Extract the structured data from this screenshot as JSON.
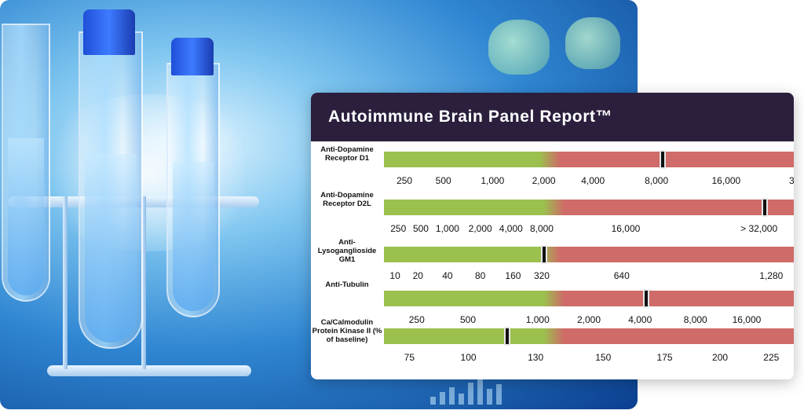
{
  "report": {
    "title": "Autoimmune Brain Panel Report™",
    "colors": {
      "header": "#2b1f3d",
      "normal": "#9bc04e",
      "elevated": "#cf6b68"
    },
    "rows": [
      {
        "label": "Anti-Dopamine Receptor D1",
        "ticks": [
          "250",
          "500",
          "1,000",
          "2,000",
          "4,000",
          "8,000",
          "16,000",
          "3"
        ],
        "marker_fraction": 0.68,
        "normal_fraction": 0.39
      },
      {
        "label": "Anti-Dopamine Receptor D2L",
        "ticks": [
          "250",
          "500",
          "1,000",
          "2,000",
          "4,000",
          "8,000",
          "16,000",
          "> 32,000"
        ],
        "marker_fraction": 0.93,
        "normal_fraction": 0.4
      },
      {
        "label": "Anti-Lysoganglioside GM1",
        "ticks": [
          "10",
          "20",
          "40",
          "80",
          "160",
          "320",
          "640",
          "1,280"
        ],
        "marker_fraction": 0.39,
        "normal_fraction": 0.39
      },
      {
        "label": "Anti-Tubulin",
        "ticks": [
          "250",
          "500",
          "1,000",
          "2,000",
          "4,000",
          "8,000",
          "16,000"
        ],
        "marker_fraction": 0.64,
        "normal_fraction": 0.4
      },
      {
        "label": "Ca/Calmodulin Protein Kinase II (% of baseline)",
        "ticks": [
          "75",
          "100",
          "130",
          "150",
          "175",
          "200",
          "225"
        ],
        "marker_fraction": 0.3,
        "normal_fraction": 0.4
      }
    ]
  }
}
